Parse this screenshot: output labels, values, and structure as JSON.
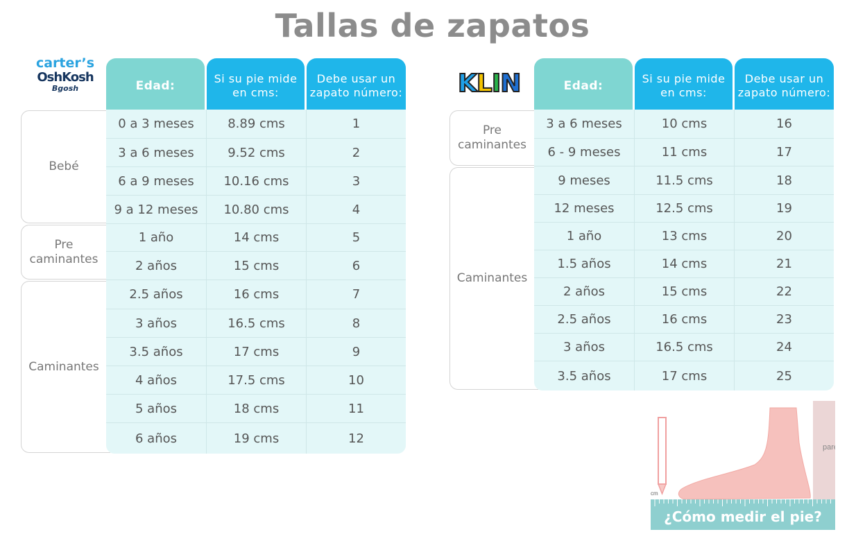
{
  "title": "Tallas de zapatos",
  "left": {
    "brand_lines": [
      "carter’s",
      "OshKosh",
      "Bgosh"
    ],
    "headers": [
      "Edad:",
      "Si su pie mide en cms:",
      "Debe usar un zapato número:"
    ],
    "groups": [
      {
        "label": "Bebé",
        "rows": 4
      },
      {
        "label": "Pre caminantes",
        "rows": 2
      },
      {
        "label": "Caminantes",
        "rows": 6
      }
    ],
    "rows": [
      [
        "0 a 3 meses",
        "8.89 cms",
        "1"
      ],
      [
        "3 a 6 meses",
        "9.52 cms",
        "2"
      ],
      [
        "6 a 9 meses",
        "10.16 cms",
        "3"
      ],
      [
        "9 a 12 meses",
        "10.80 cms",
        "4"
      ],
      [
        "1 año",
        "14 cms",
        "5"
      ],
      [
        "2 años",
        "15 cms",
        "6"
      ],
      [
        "2.5 años",
        "16 cms",
        "7"
      ],
      [
        "3 años",
        "16.5 cms",
        "8"
      ],
      [
        "3.5 años",
        "17 cms",
        "9"
      ],
      [
        "4 años",
        "17.5 cms",
        "10"
      ],
      [
        "5 años",
        "18 cms",
        "11"
      ],
      [
        "6 años",
        "19 cms",
        "12"
      ]
    ]
  },
  "right": {
    "brand": "KLIN",
    "brand_colors": [
      "#1fa0e8",
      "#f5c400",
      "#2ab34a",
      "#1f6fd1"
    ],
    "headers": [
      "Edad:",
      "Si su pie mide en cms:",
      "Debe usar un zapato número:"
    ],
    "groups": [
      {
        "label": "Pre caminantes",
        "rows": 2
      },
      {
        "label": "Caminantes",
        "rows": 8
      }
    ],
    "rows": [
      [
        "3 a 6 meses",
        "10 cms",
        "16"
      ],
      [
        "6 - 9 meses",
        "11 cms",
        "17"
      ],
      [
        "9 meses",
        "11.5 cms",
        "18"
      ],
      [
        "12 meses",
        "12.5 cms",
        "19"
      ],
      [
        "1 año",
        "13 cms",
        "20"
      ],
      [
        "1.5 años",
        "14 cms",
        "21"
      ],
      [
        "2 años",
        "15 cms",
        "22"
      ],
      [
        "2.5 años",
        "16 cms",
        "23"
      ],
      [
        "3 años",
        "16.5 cms",
        "24"
      ],
      [
        "3.5 años",
        "17 cms",
        "25"
      ]
    ]
  },
  "measure": {
    "wall_label": "pared",
    "pencil_label": "cm",
    "caption": "¿Cómo medir el pie?"
  },
  "colors": {
    "header_blue": "#1fb6ea",
    "header_teal": "#7fd6d2",
    "row_bg": "#e3f7f8",
    "caption_bg": "#8ecfcf"
  }
}
